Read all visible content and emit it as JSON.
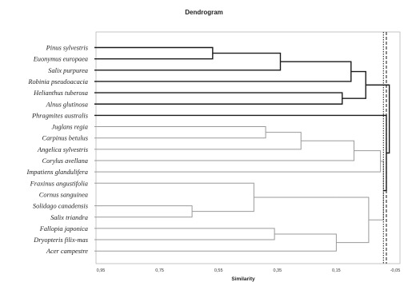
{
  "chart_data": {
    "type": "dendrogram",
    "title": "Dendrogram",
    "xlabel": "Similarity",
    "xlim": [
      0.95,
      -0.05
    ],
    "ticks": [
      "0,95",
      "0,75",
      "0,55",
      "0,35",
      "0,15",
      "-0,05"
    ],
    "tick_values": [
      0.95,
      0.75,
      0.55,
      0.35,
      0.15,
      -0.05
    ],
    "leaves": [
      "Pinus sylvestris",
      "Euonymus europaea",
      "Salix purpurea",
      "Robinia pseudoacacia",
      "Helianthus tuberosa",
      "Alnus glutinosa",
      "Phragmites australis",
      "Juglans regia",
      "Carpinus betulus",
      "Angelica sylvestris",
      "Corylus avellana",
      "Impatiens glandulifera",
      "Fraxinus angustifolia",
      "Cornus sanguinea",
      "Solidago canadensis",
      "Salix triandra",
      "Fallopia japonica",
      "Dryopteris filix-mas",
      "Acer campestre"
    ],
    "cut_lines": [
      {
        "similarity": -0.01,
        "style": "dotted"
      },
      {
        "similarity": -0.02,
        "style": "dashed"
      }
    ],
    "merges": [
      {
        "a": "L0",
        "b": "L1",
        "height": 0.57,
        "bold": true
      },
      {
        "a": "N0",
        "b": "L2",
        "height": 0.34,
        "bold": true
      },
      {
        "a": "N1",
        "b": "L3",
        "height": 0.1,
        "bold": true
      },
      {
        "a": "L4",
        "b": "L5",
        "height": 0.13,
        "bold": true
      },
      {
        "a": "N2",
        "b": "N3",
        "height": 0.05,
        "bold": true
      },
      {
        "a": "L7",
        "b": "L8",
        "height": 0.39,
        "bold": false
      },
      {
        "a": "N5",
        "b": "L9",
        "height": 0.27,
        "bold": false
      },
      {
        "a": "N6",
        "b": "L10",
        "height": 0.09,
        "bold": false
      },
      {
        "a": "N7",
        "b": "L11",
        "height": 0.0,
        "bold": false
      },
      {
        "a": "L14",
        "b": "L15",
        "height": 0.64,
        "bold": false
      },
      {
        "a": "L12",
        "b": "N9",
        "height": 0.43,
        "bold": false
      },
      {
        "a": "L12b",
        "b": "N10",
        "height": 0.15,
        "bold": false
      },
      {
        "a": "L16",
        "b": "L17",
        "height": 0.36,
        "bold": false
      },
      {
        "a": "N12",
        "b": "L18",
        "height": 0.15,
        "bold": false
      },
      {
        "a": "N11",
        "b": "N13",
        "height": 0.04,
        "bold": false
      },
      {
        "a": "N8",
        "b": "N14",
        "height": -0.01,
        "bold": false
      },
      {
        "a": "L6",
        "b": "N15",
        "height": -0.02,
        "bold": true
      },
      {
        "a": "N4",
        "b": "N16",
        "height": -0.03,
        "bold": true
      }
    ]
  }
}
